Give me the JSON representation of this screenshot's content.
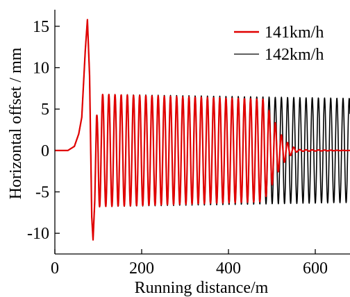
{
  "chart_data": {
    "type": "line",
    "xlabel": "Running distance/m",
    "ylabel": "Horizontal offset / mm",
    "xlim": [
      0,
      680
    ],
    "ylim": [
      -12.5,
      17
    ],
    "xticks": [
      0,
      200,
      400,
      600
    ],
    "yticks": [
      15,
      10,
      5,
      0,
      -5,
      -10
    ],
    "xtick_labels": [
      "0",
      "200",
      "400",
      "600"
    ],
    "ytick_labels": [
      "15",
      "10",
      "5",
      "0",
      "-5",
      "-10"
    ],
    "grid": false,
    "legend_position": "top-right",
    "series": [
      {
        "name": "141km/h",
        "color": "#e00000",
        "behavior": "initial bump to 15.8 mm near 75 m, dip to -10.8 mm near 87 m, hunting oscillation with amplitude ~6.3 mm that decays after ~480 m and settles to 0 by ~560 m",
        "control_points": [
          [
            0,
            0
          ],
          [
            30,
            0
          ],
          [
            45,
            0.5
          ],
          [
            55,
            2
          ],
          [
            62,
            4
          ],
          [
            70,
            12
          ],
          [
            75,
            15.8
          ],
          [
            80,
            9
          ],
          [
            85,
            -8
          ],
          [
            88,
            -10.8
          ],
          [
            92,
            -6
          ],
          [
            96,
            4
          ],
          [
            100,
            6.8
          ],
          [
            480,
            6.2
          ],
          [
            500,
            4.2
          ],
          [
            520,
            2.0
          ],
          [
            540,
            0.7
          ],
          [
            560,
            0.1
          ],
          [
            680,
            0
          ]
        ]
      },
      {
        "name": "142km/h",
        "color": "#000000",
        "behavior": "same initial bump, then sustained hunting oscillation with amplitude ~6.3 mm to the end of the plot",
        "control_points": [
          [
            0,
            0
          ],
          [
            30,
            0
          ],
          [
            45,
            0.5
          ],
          [
            55,
            2
          ],
          [
            62,
            4
          ],
          [
            70,
            12
          ],
          [
            75,
            15.8
          ],
          [
            80,
            9
          ],
          [
            85,
            -8
          ],
          [
            88,
            -10.8
          ],
          [
            92,
            -6
          ],
          [
            96,
            4
          ],
          [
            100,
            6.8
          ],
          [
            680,
            6.3
          ]
        ]
      }
    ],
    "oscillation_period_m": 14.2
  }
}
